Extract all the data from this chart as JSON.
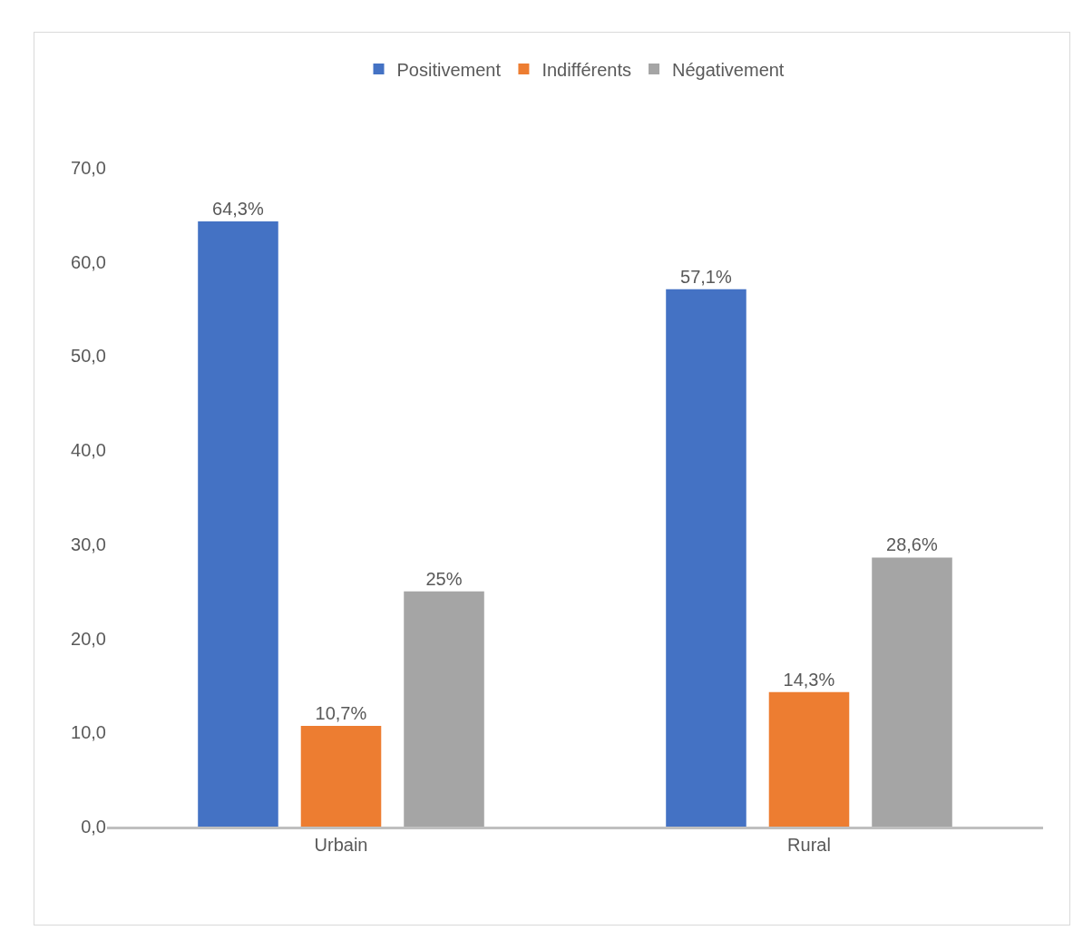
{
  "chart_data": {
    "type": "bar",
    "categories": [
      "Urbain",
      "Rural"
    ],
    "series": [
      {
        "name": "Positivement",
        "color": "#4472c4",
        "values": [
          64.3,
          57.1
        ],
        "value_labels": [
          "64,3%",
          "57,1%"
        ]
      },
      {
        "name": "Indifférents",
        "color": "#ed7d31",
        "values": [
          10.7,
          14.3
        ],
        "value_labels": [
          "10,7%",
          "14,3%"
        ]
      },
      {
        "name": "Négativement",
        "color": "#a5a5a5",
        "values": [
          25,
          28.6
        ],
        "value_labels": [
          "25%",
          "28,6%"
        ]
      }
    ],
    "ylim": [
      0,
      70
    ],
    "yticks": [
      {
        "value": 0,
        "label": "0,0"
      },
      {
        "value": 10,
        "label": "10,0"
      },
      {
        "value": 20,
        "label": "20,0"
      },
      {
        "value": 30,
        "label": "30,0"
      },
      {
        "value": 40,
        "label": "40,0"
      },
      {
        "value": 50,
        "label": "50,0"
      },
      {
        "value": 60,
        "label": "60,0"
      },
      {
        "value": 70,
        "label": "70,0"
      }
    ],
    "grid": false,
    "legend": "top"
  }
}
